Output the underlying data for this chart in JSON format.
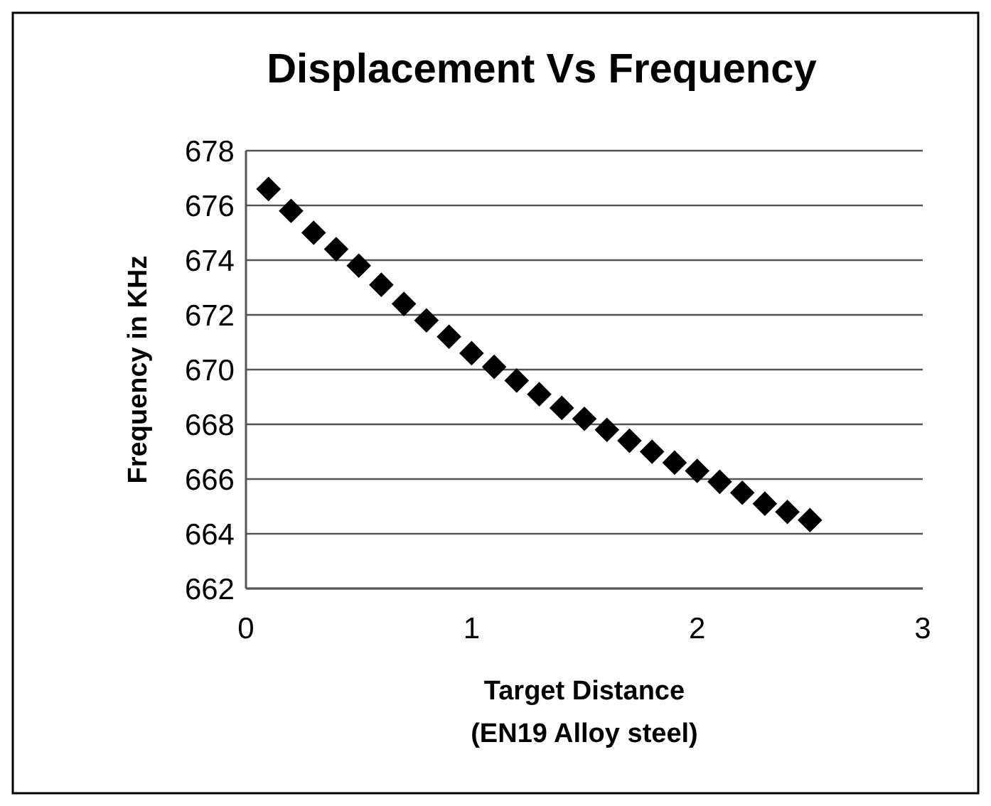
{
  "chart_data": {
    "type": "scatter",
    "title": "Displacement Vs Frequency",
    "xlabel": "Target Distance\n(EN19 Alloy steel)",
    "ylabel": "Frequency in KHz",
    "x": [
      0.1,
      0.2,
      0.3,
      0.4,
      0.5,
      0.6,
      0.7,
      0.8,
      0.9,
      1.0,
      1.1,
      1.2,
      1.3,
      1.4,
      1.5,
      1.6,
      1.7,
      1.8,
      1.9,
      2.0,
      2.1,
      2.2,
      2.3,
      2.4,
      2.5
    ],
    "series": [
      {
        "color": "#000000",
        "values": [
          676.6,
          675.8,
          675.0,
          674.4,
          673.8,
          673.1,
          672.4,
          671.8,
          671.2,
          670.6,
          670.1,
          669.6,
          669.1,
          668.6,
          668.2,
          667.8,
          667.4,
          667.0,
          666.6,
          666.3,
          665.9,
          665.5,
          665.1,
          664.8,
          664.5
        ]
      }
    ],
    "xlim": [
      0,
      3
    ],
    "xticks": [
      0,
      1,
      2,
      3
    ],
    "ylim": [
      662,
      678
    ],
    "yticks": [
      662,
      664,
      666,
      668,
      670,
      672,
      674,
      676,
      678
    ],
    "grid": "y",
    "marker": "diamond"
  }
}
